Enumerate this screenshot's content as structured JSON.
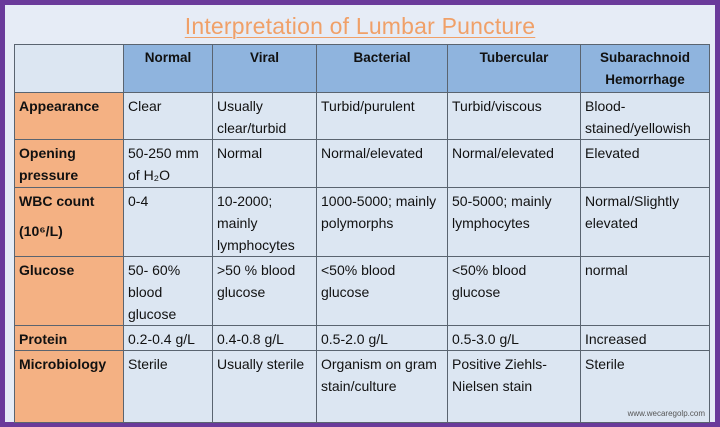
{
  "title": "Interpretation of Lumbar Puncture",
  "columns": [
    "",
    "Normal",
    "Viral",
    "Bacterial",
    "Tubercular",
    "Subarachnoid Hemorrhage"
  ],
  "rows": [
    {
      "label": "Appearance",
      "label2": "",
      "cells": [
        "Clear",
        "Usually clear/turbid",
        "Turbid/purulent",
        "Turbid/viscous",
        "Blood-stained/yellowish"
      ]
    },
    {
      "label": "Opening pressure",
      "label2": "",
      "cells": [
        "50-250 mm of H₂O",
        "Normal",
        "Normal/elevated",
        "Normal/elevated",
        "Elevated"
      ]
    },
    {
      "label": "WBC count",
      "label2": "(10⁶/L)",
      "cells": [
        "0-4",
        "10-2000; mainly lymphocytes",
        "1000-5000; mainly polymorphs",
        "50-5000; mainly lymphocytes",
        "Normal/Slightly elevated"
      ]
    },
    {
      "label": "Glucose",
      "label2": "",
      "cells": [
        "50- 60% blood glucose",
        ">50 % blood glucose",
        "<50% blood glucose",
        "<50% blood glucose",
        "normal"
      ]
    },
    {
      "label": "Protein",
      "label2": "",
      "cells": [
        "0.2-0.4 g/L",
        "0.4-0.8 g/L",
        "0.5-2.0 g/L",
        "0.5-3.0 g/L",
        "Increased"
      ]
    },
    {
      "label": "Microbiology",
      "label2": "",
      "cells": [
        "Sterile",
        "Usually sterile",
        "Organism on gram stain/culture",
        "Positive Ziehls-Nielsen stain",
        "Sterile"
      ]
    }
  ],
  "credit": "www.wecaregolp.com",
  "colors": {
    "border": "#6a3a9a",
    "header": "#8fb4de",
    "label": "#f4b183",
    "cell": "#dce6f2",
    "title": "#f0a068"
  }
}
